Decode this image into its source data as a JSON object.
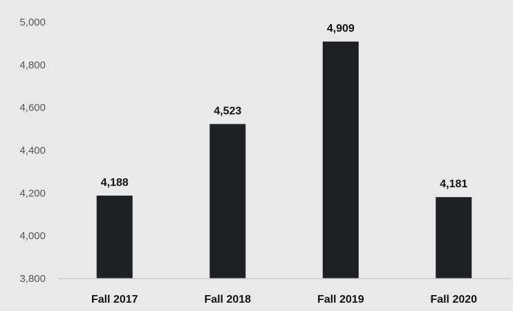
{
  "chart_data": {
    "type": "bar",
    "title": "",
    "xlabel": "",
    "ylabel": "",
    "categories": [
      "Fall 2017",
      "Fall 2018",
      "Fall 2019",
      "Fall 2020"
    ],
    "values": [
      4188,
      4523,
      4909,
      4181
    ],
    "data_labels": [
      "4,188",
      "4,523",
      "4,909",
      "4,181"
    ],
    "ylim": [
      3800,
      5000
    ],
    "y_ticks": [
      3800,
      4000,
      4200,
      4400,
      4600,
      4800,
      5000
    ],
    "y_tick_labels": [
      "3,800",
      "4,000",
      "4,200",
      "4,400",
      "4,600",
      "4,800",
      "5,000"
    ],
    "grid": false,
    "legend": "none",
    "bar_color": "#1f2024",
    "background_color": "#e9e9e9"
  }
}
